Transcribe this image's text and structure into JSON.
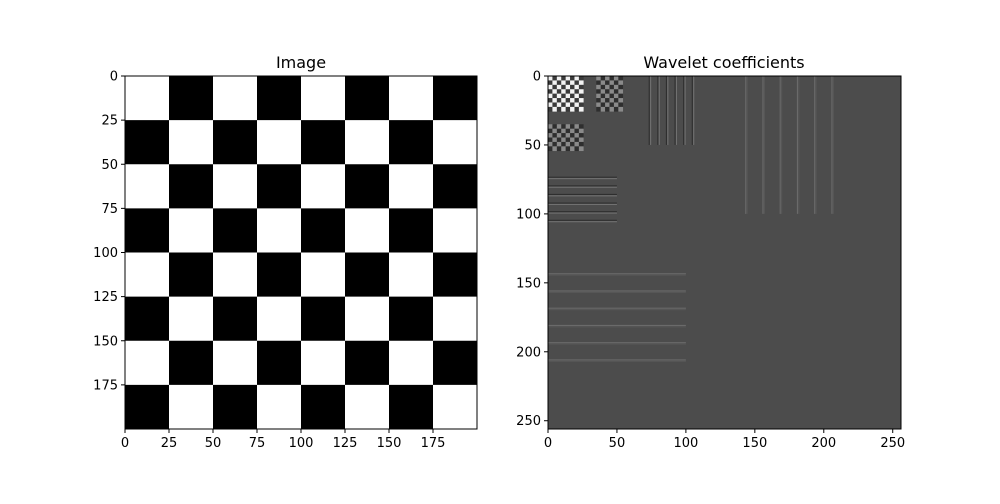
{
  "chart_data": [
    {
      "type": "heatmap",
      "title": "Image",
      "pattern": "checkerboard",
      "image_size": [
        200,
        200
      ],
      "square_size": 25,
      "colormap": "gray",
      "values_range": [
        0,
        1
      ],
      "x_ticks": [
        0,
        25,
        50,
        75,
        100,
        125,
        150,
        175
      ],
      "y_ticks": [
        0,
        25,
        50,
        75,
        100,
        125,
        150,
        175
      ],
      "xlim": [
        0,
        200
      ],
      "ylim": [
        200,
        0
      ],
      "grid": false,
      "colors": {
        "black": "#000000",
        "white": "#ffffff"
      }
    },
    {
      "type": "heatmap",
      "title": "Wavelet coefficients",
      "image_size": [
        256,
        256
      ],
      "colormap": "gray",
      "x_ticks": [
        0,
        50,
        100,
        150,
        200,
        250
      ],
      "y_ticks": [
        0,
        50,
        100,
        150,
        200,
        250
      ],
      "xlim": [
        0,
        256
      ],
      "ylim": [
        256,
        0
      ],
      "grid": false,
      "background_color": "#4c4c4c",
      "subbands": [
        {
          "band": "approximation",
          "x": [
            0,
            25
          ],
          "y": [
            0,
            25
          ],
          "pattern": "fine-checker"
        },
        {
          "band": "level3-horizontal",
          "x": [
            35,
            52
          ],
          "y": [
            0,
            25
          ],
          "pattern": "fine-checker-dim"
        },
        {
          "band": "level3-vertical",
          "x": [
            0,
            25
          ],
          "y": [
            35,
            52
          ],
          "pattern": "fine-checker-dim"
        },
        {
          "band": "level2-horizontal",
          "x": [
            70,
            108
          ],
          "y": [
            0,
            50
          ],
          "pattern": "vertical-lines"
        },
        {
          "band": "level2-vertical",
          "x": [
            0,
            50
          ],
          "y": [
            70,
            108
          ],
          "pattern": "horizontal-lines"
        },
        {
          "band": "level1-horizontal",
          "x": [
            140,
            216
          ],
          "y": [
            0,
            100
          ],
          "pattern": "vertical-lines-faint"
        },
        {
          "band": "level1-vertical",
          "x": [
            0,
            100
          ],
          "y": [
            140,
            216
          ],
          "pattern": "horizontal-lines-faint"
        }
      ]
    }
  ]
}
